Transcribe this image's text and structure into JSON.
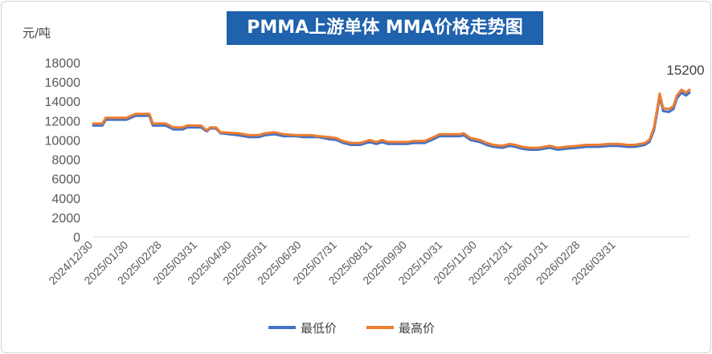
{
  "chart_data": {
    "type": "line",
    "title": "PMMA上游单体 MMA价格走势图",
    "ylabel": "元/吨",
    "ylim": [
      0,
      18000
    ],
    "yticks": [
      0,
      2000,
      4000,
      6000,
      8000,
      10000,
      12000,
      14000,
      16000,
      18000
    ],
    "x_tick_labels": [
      "2024/12/30",
      "2025/01/30",
      "2025/02/28",
      "2025/03/31",
      "2025/04/30",
      "2025/05/31",
      "2025/06/30",
      "2025/07/31",
      "2025/08/31",
      "2025/09/30",
      "2025/10/31",
      "2025/11/30",
      "2025/12/31",
      "2026/01/31",
      "2026/02/28",
      "2026/03/31"
    ],
    "x_tick_dates": [
      "2024-12-30",
      "2025-01-30",
      "2025-02-28",
      "2025-03-31",
      "2025-04-30",
      "2025-05-31",
      "2025-06-30",
      "2025-07-31",
      "2025-08-31",
      "2025-09-30",
      "2025-10-31",
      "2025-11-30",
      "2025-12-31",
      "2026-01-31",
      "2026-02-28",
      "2026-03-31"
    ],
    "grid": false,
    "legend_position": "bottom-center",
    "annotations": [
      {
        "text": "15200",
        "x": "2026-03-31",
        "y": 15200
      }
    ],
    "series": [
      {
        "name": "最低价",
        "color": "#4472c4",
        "points": [
          [
            "2024-12-30",
            11500
          ],
          [
            "2025-01-07",
            11500
          ],
          [
            "2025-01-10",
            12100
          ],
          [
            "2025-01-28",
            12100
          ],
          [
            "2025-02-05",
            12500
          ],
          [
            "2025-02-17",
            12500
          ],
          [
            "2025-02-20",
            11500
          ],
          [
            "2025-03-03",
            11500
          ],
          [
            "2025-03-10",
            11100
          ],
          [
            "2025-03-18",
            11100
          ],
          [
            "2025-03-22",
            11300
          ],
          [
            "2025-04-03",
            11300
          ],
          [
            "2025-04-08",
            10900
          ],
          [
            "2025-04-11",
            11200
          ],
          [
            "2025-04-16",
            11200
          ],
          [
            "2025-04-20",
            10700
          ],
          [
            "2025-05-05",
            10500
          ],
          [
            "2025-05-15",
            10300
          ],
          [
            "2025-05-23",
            10300
          ],
          [
            "2025-05-29",
            10500
          ],
          [
            "2025-06-06",
            10600
          ],
          [
            "2025-06-14",
            10400
          ],
          [
            "2025-06-25",
            10400
          ],
          [
            "2025-07-01",
            10300
          ],
          [
            "2025-07-08",
            10300
          ],
          [
            "2025-07-14",
            10300
          ],
          [
            "2025-07-23",
            10100
          ],
          [
            "2025-07-30",
            10000
          ],
          [
            "2025-08-05",
            9700
          ],
          [
            "2025-08-12",
            9500
          ],
          [
            "2025-08-20",
            9500
          ],
          [
            "2025-08-28",
            9800
          ],
          [
            "2025-09-03",
            9600
          ],
          [
            "2025-09-08",
            9800
          ],
          [
            "2025-09-13",
            9600
          ],
          [
            "2025-09-20",
            9600
          ],
          [
            "2025-09-30",
            9600
          ],
          [
            "2025-10-05",
            9700
          ],
          [
            "2025-10-15",
            9700
          ],
          [
            "2025-10-23",
            10100
          ],
          [
            "2025-10-28",
            10400
          ],
          [
            "2025-11-05",
            10400
          ],
          [
            "2025-11-15",
            10400
          ],
          [
            "2025-11-18",
            10500
          ],
          [
            "2025-11-24",
            10000
          ],
          [
            "2025-12-02",
            9800
          ],
          [
            "2025-12-08",
            9500
          ],
          [
            "2025-12-14",
            9300
          ],
          [
            "2025-12-22",
            9200
          ],
          [
            "2025-12-28",
            9400
          ],
          [
            "2026-01-02",
            9300
          ],
          [
            "2026-01-08",
            9100
          ],
          [
            "2026-01-15",
            9000
          ],
          [
            "2026-01-22",
            9000
          ],
          [
            "2026-01-27",
            9100
          ],
          [
            "2026-02-01",
            9200
          ],
          [
            "2026-02-08",
            9000
          ],
          [
            "2026-02-15",
            9100
          ],
          [
            "2026-02-25",
            9200
          ],
          [
            "2026-03-05",
            9300
          ],
          [
            "2026-03-15",
            9300
          ],
          [
            "2026-03-25",
            9400
          ],
          [
            "2026-04-02",
            9400
          ],
          [
            "2026-04-10",
            9300
          ],
          [
            "2026-04-16",
            9300
          ],
          [
            "2026-04-21",
            9400
          ],
          [
            "2026-04-25",
            9500
          ],
          [
            "2026-04-29",
            9800
          ],
          [
            "2026-05-03",
            11000
          ],
          [
            "2026-05-06",
            13000
          ],
          [
            "2026-05-08",
            14500
          ],
          [
            "2026-05-11",
            13000
          ],
          [
            "2026-05-16",
            12900
          ],
          [
            "2026-05-20",
            13200
          ],
          [
            "2026-05-23",
            14300
          ],
          [
            "2026-05-27",
            14900
          ],
          [
            "2026-05-31",
            14600
          ],
          [
            "2026-06-03",
            14900
          ]
        ]
      },
      {
        "name": "最高价",
        "color": "#ed7d31",
        "points": [
          [
            "2024-12-30",
            11700
          ],
          [
            "2025-01-07",
            11700
          ],
          [
            "2025-01-10",
            12300
          ],
          [
            "2025-01-28",
            12300
          ],
          [
            "2025-02-05",
            12700
          ],
          [
            "2025-02-17",
            12700
          ],
          [
            "2025-02-20",
            11700
          ],
          [
            "2025-03-03",
            11700
          ],
          [
            "2025-03-10",
            11300
          ],
          [
            "2025-03-18",
            11300
          ],
          [
            "2025-03-22",
            11500
          ],
          [
            "2025-04-03",
            11500
          ],
          [
            "2025-04-08",
            11000
          ],
          [
            "2025-04-11",
            11300
          ],
          [
            "2025-04-16",
            11300
          ],
          [
            "2025-04-20",
            10800
          ],
          [
            "2025-05-05",
            10700
          ],
          [
            "2025-05-15",
            10500
          ],
          [
            "2025-05-23",
            10500
          ],
          [
            "2025-05-29",
            10700
          ],
          [
            "2025-06-06",
            10800
          ],
          [
            "2025-06-14",
            10600
          ],
          [
            "2025-06-25",
            10500
          ],
          [
            "2025-07-01",
            10500
          ],
          [
            "2025-07-08",
            10500
          ],
          [
            "2025-07-14",
            10400
          ],
          [
            "2025-07-23",
            10300
          ],
          [
            "2025-07-30",
            10200
          ],
          [
            "2025-08-05",
            9900
          ],
          [
            "2025-08-12",
            9700
          ],
          [
            "2025-08-20",
            9700
          ],
          [
            "2025-08-28",
            10000
          ],
          [
            "2025-09-03",
            9800
          ],
          [
            "2025-09-08",
            10000
          ],
          [
            "2025-09-13",
            9800
          ],
          [
            "2025-09-20",
            9800
          ],
          [
            "2025-09-30",
            9800
          ],
          [
            "2025-10-05",
            9900
          ],
          [
            "2025-10-15",
            9900
          ],
          [
            "2025-10-23",
            10300
          ],
          [
            "2025-10-28",
            10600
          ],
          [
            "2025-11-05",
            10600
          ],
          [
            "2025-11-15",
            10600
          ],
          [
            "2025-11-18",
            10700
          ],
          [
            "2025-11-24",
            10200
          ],
          [
            "2025-12-02",
            10000
          ],
          [
            "2025-12-08",
            9700
          ],
          [
            "2025-12-14",
            9500
          ],
          [
            "2025-12-22",
            9400
          ],
          [
            "2025-12-28",
            9600
          ],
          [
            "2026-01-02",
            9500
          ],
          [
            "2026-01-08",
            9300
          ],
          [
            "2026-01-15",
            9200
          ],
          [
            "2026-01-22",
            9200
          ],
          [
            "2026-01-27",
            9300
          ],
          [
            "2026-02-01",
            9400
          ],
          [
            "2026-02-08",
            9200
          ],
          [
            "2026-02-15",
            9300
          ],
          [
            "2026-02-25",
            9400
          ],
          [
            "2026-03-05",
            9500
          ],
          [
            "2026-03-15",
            9500
          ],
          [
            "2026-03-25",
            9600
          ],
          [
            "2026-04-02",
            9600
          ],
          [
            "2026-04-10",
            9500
          ],
          [
            "2026-04-16",
            9500
          ],
          [
            "2026-04-21",
            9600
          ],
          [
            "2026-04-25",
            9700
          ],
          [
            "2026-04-29",
            10000
          ],
          [
            "2026-05-03",
            11300
          ],
          [
            "2026-05-06",
            13300
          ],
          [
            "2026-05-08",
            14800
          ],
          [
            "2026-05-11",
            13300
          ],
          [
            "2026-05-16",
            13200
          ],
          [
            "2026-05-20",
            13500
          ],
          [
            "2026-05-23",
            14600
          ],
          [
            "2026-05-27",
            15200
          ],
          [
            "2026-05-31",
            14900
          ],
          [
            "2026-06-03",
            15200
          ]
        ]
      }
    ]
  }
}
